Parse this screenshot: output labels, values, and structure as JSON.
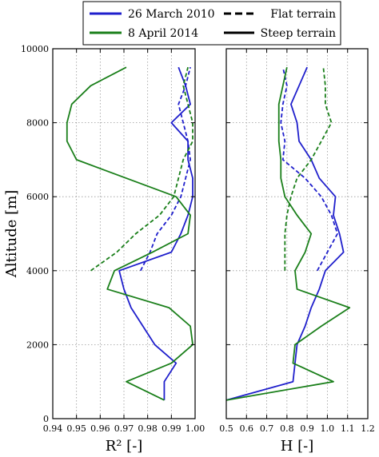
{
  "legend": {
    "entries": [
      {
        "label": "26 March 2010",
        "color": "#1f1fcc",
        "style": "solid"
      },
      {
        "label": "8 April 2014",
        "color": "#1a7f1a",
        "style": "solid"
      },
      {
        "label": "Flat terrain",
        "color": "#000000",
        "style": "dashed"
      },
      {
        "label": "Steep terrain",
        "color": "#000000",
        "style": "solid"
      }
    ],
    "placement": "top-center"
  },
  "chart_data": [
    {
      "type": "line",
      "xlabel": "R² [-]",
      "ylabel": "Altitude [m]",
      "xlim": [
        0.94,
        1.0
      ],
      "ylim": [
        0,
        10000
      ],
      "xticks": [
        "0.94",
        "0.95",
        "0.96",
        "0.97",
        "0.98",
        "0.99",
        "1.00"
      ],
      "yticks": [
        "0",
        "2000",
        "4000",
        "6000",
        "8000",
        "10000"
      ],
      "grid": true,
      "series": [
        {
          "name": "26 March 2010",
          "terrain": "Steep terrain",
          "color": "#1f1fcc",
          "dashed": false,
          "points": [
            [
              0.987,
              500
            ],
            [
              0.987,
              1000
            ],
            [
              0.992,
              1500
            ],
            [
              0.983,
              2000
            ],
            [
              0.978,
              2500
            ],
            [
              0.973,
              3000
            ],
            [
              0.97,
              3500
            ],
            [
              0.968,
              4000
            ],
            [
              0.99,
              4500
            ],
            [
              0.994,
              5000
            ],
            [
              0.997,
              5500
            ],
            [
              0.999,
              6000
            ],
            [
              0.999,
              6500
            ],
            [
              0.997,
              7000
            ],
            [
              0.997,
              7500
            ],
            [
              0.99,
              8000
            ],
            [
              0.998,
              8500
            ],
            [
              0.996,
              9000
            ],
            [
              0.993,
              9500
            ]
          ]
        },
        {
          "name": "26 March 2010",
          "terrain": "Flat terrain",
          "color": "#1f1fcc",
          "dashed": true,
          "points": [
            [
              0.977,
              4000
            ],
            [
              0.981,
              4500
            ],
            [
              0.984,
              5000
            ],
            [
              0.99,
              5500
            ],
            [
              0.994,
              6000
            ],
            [
              0.996,
              6500
            ],
            [
              0.998,
              7000
            ],
            [
              0.997,
              7500
            ],
            [
              0.995,
              8000
            ],
            [
              0.993,
              8500
            ],
            [
              0.996,
              9000
            ],
            [
              0.998,
              9500
            ]
          ]
        },
        {
          "name": "8 April 2014",
          "terrain": "Steep terrain",
          "color": "#1a7f1a",
          "dashed": false,
          "points": [
            [
              0.987,
              500
            ],
            [
              0.971,
              1000
            ],
            [
              0.99,
              1500
            ],
            [
              0.999,
              2000
            ],
            [
              0.998,
              2500
            ],
            [
              0.989,
              3000
            ],
            [
              0.963,
              3500
            ],
            [
              0.966,
              4000
            ],
            [
              0.982,
              4500
            ],
            [
              0.997,
              5000
            ],
            [
              0.998,
              5500
            ],
            [
              0.992,
              6000
            ],
            [
              0.95,
              7000
            ],
            [
              0.946,
              7500
            ],
            [
              0.946,
              8000
            ],
            [
              0.948,
              8500
            ],
            [
              0.956,
              9000
            ],
            [
              0.971,
              9500
            ]
          ]
        },
        {
          "name": "8 April 2014",
          "terrain": "Flat terrain",
          "color": "#1a7f1a",
          "dashed": true,
          "points": [
            [
              0.956,
              4000
            ],
            [
              0.967,
              4500
            ],
            [
              0.975,
              5000
            ],
            [
              0.985,
              5500
            ],
            [
              0.991,
              6000
            ],
            [
              0.993,
              6500
            ],
            [
              0.995,
              7000
            ],
            [
              0.999,
              7500
            ],
            [
              0.999,
              8000
            ],
            [
              0.997,
              8500
            ],
            [
              0.995,
              9000
            ],
            [
              0.997,
              9500
            ]
          ]
        }
      ]
    },
    {
      "type": "line",
      "xlabel": "H [-]",
      "ylabel": "",
      "xlim": [
        0.5,
        1.2
      ],
      "ylim": [
        0,
        10000
      ],
      "xticks": [
        "0.5",
        "0.6",
        "0.7",
        "0.8",
        "0.9",
        "1.0",
        "1.1",
        "1.2"
      ],
      "yticks": [],
      "grid": true,
      "series": [
        {
          "name": "26 March 2010",
          "terrain": "Steep terrain",
          "color": "#1f1fcc",
          "dashed": false,
          "points": [
            [
              0.5,
              500
            ],
            [
              0.83,
              1000
            ],
            [
              0.84,
              1500
            ],
            [
              0.85,
              2000
            ],
            [
              0.89,
              2500
            ],
            [
              0.92,
              3000
            ],
            [
              0.96,
              3500
            ],
            [
              0.99,
              4000
            ],
            [
              1.08,
              4500
            ],
            [
              1.06,
              5000
            ],
            [
              1.03,
              5500
            ],
            [
              1.04,
              6000
            ],
            [
              0.96,
              6500
            ],
            [
              0.92,
              7000
            ],
            [
              0.86,
              7500
            ],
            [
              0.85,
              8000
            ],
            [
              0.82,
              8500
            ],
            [
              0.86,
              9000
            ],
            [
              0.9,
              9500
            ]
          ]
        },
        {
          "name": "26 March 2010",
          "terrain": "Flat terrain",
          "color": "#1f1fcc",
          "dashed": true,
          "points": [
            [
              0.95,
              4000
            ],
            [
              1.0,
              4500
            ],
            [
              1.05,
              5000
            ],
            [
              1.02,
              5500
            ],
            [
              0.97,
              6000
            ],
            [
              0.89,
              6500
            ],
            [
              0.78,
              7000
            ],
            [
              0.79,
              7500
            ],
            [
              0.77,
              8000
            ],
            [
              0.78,
              8500
            ],
            [
              0.8,
              9000
            ],
            [
              0.78,
              9500
            ]
          ]
        },
        {
          "name": "8 April 2014",
          "terrain": "Steep terrain",
          "color": "#1a7f1a",
          "dashed": false,
          "points": [
            [
              0.5,
              500
            ],
            [
              1.03,
              1000
            ],
            [
              0.83,
              1500
            ],
            [
              0.84,
              2000
            ],
            [
              0.97,
              2500
            ],
            [
              1.11,
              3000
            ],
            [
              0.85,
              3500
            ],
            [
              0.84,
              4000
            ],
            [
              0.89,
              4500
            ],
            [
              0.92,
              5000
            ],
            [
              0.85,
              5500
            ],
            [
              0.79,
              6000
            ],
            [
              0.77,
              6500
            ],
            [
              0.77,
              7000
            ],
            [
              0.76,
              7500
            ],
            [
              0.76,
              8000
            ],
            [
              0.76,
              8500
            ],
            [
              0.78,
              9000
            ],
            [
              0.8,
              9500
            ]
          ]
        },
        {
          "name": "8 April 2014",
          "terrain": "Flat terrain",
          "color": "#1a7f1a",
          "dashed": true,
          "points": [
            [
              0.79,
              4000
            ],
            [
              0.79,
              4500
            ],
            [
              0.79,
              5000
            ],
            [
              0.8,
              5500
            ],
            [
              0.82,
              6000
            ],
            [
              0.85,
              6500
            ],
            [
              0.92,
              7000
            ],
            [
              0.97,
              7500
            ],
            [
              1.02,
              8000
            ],
            [
              0.99,
              8500
            ],
            [
              0.99,
              9000
            ],
            [
              0.98,
              9500
            ]
          ]
        }
      ]
    }
  ]
}
